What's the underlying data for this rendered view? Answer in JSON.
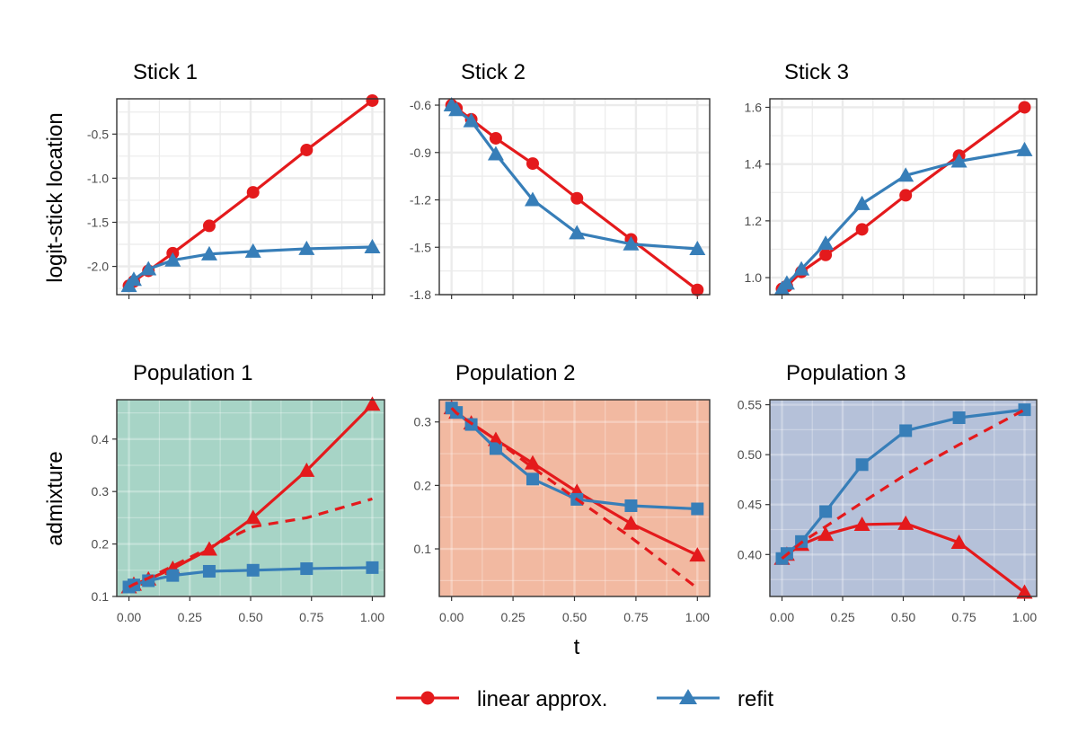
{
  "colors": {
    "linear": "#E41A1C",
    "refit": "#377EB8",
    "population_bg": [
      "#A7D4C6",
      "#F2B9A1",
      "#B5C1D9"
    ]
  },
  "legend": {
    "items": [
      {
        "label": "linear approx.",
        "color": "#E41A1C",
        "marker": "circle"
      },
      {
        "label": "refit",
        "color": "#377EB8",
        "marker": "triangle"
      }
    ]
  },
  "axes": {
    "top_ylabel": "logit-stick location",
    "bottom_ylabel": "admixture",
    "xlabel": "t"
  },
  "chart_data": [
    {
      "type": "line",
      "title": "Stick 1",
      "x": [
        0,
        0.02,
        0.08,
        0.18,
        0.33,
        0.51,
        0.73,
        1.0
      ],
      "ylim": [
        -2.32,
        -0.1
      ],
      "yticks": [
        -0.5,
        -1.0,
        -1.5,
        -2.0
      ],
      "ytick_labels": [
        "-0.5",
        "-1.0",
        "-1.5",
        "-2.0"
      ],
      "show_xticklabels": false,
      "grid": true,
      "background": "white",
      "series": [
        {
          "name": "linear approx.",
          "marker": "circle",
          "dashed": false,
          "values": [
            -2.22,
            -2.17,
            -2.05,
            -1.85,
            -1.54,
            -1.16,
            -0.68,
            -0.12
          ]
        },
        {
          "name": "refit",
          "marker": "triangle",
          "dashed": false,
          "values": [
            -2.22,
            -2.15,
            -2.03,
            -1.93,
            -1.86,
            -1.83,
            -1.8,
            -1.78
          ]
        }
      ]
    },
    {
      "type": "line",
      "title": "Stick 2",
      "x": [
        0,
        0.02,
        0.08,
        0.18,
        0.33,
        0.51,
        0.73,
        1.0
      ],
      "ylim": [
        -1.8,
        -0.56
      ],
      "yticks": [
        -0.6,
        -0.9,
        -1.2,
        -1.5,
        -1.8
      ],
      "ytick_labels": [
        "-0.6",
        "-0.9",
        "-1.2",
        "-1.5",
        "-1.8"
      ],
      "show_xticklabels": false,
      "grid": true,
      "background": "white",
      "series": [
        {
          "name": "linear approx.",
          "marker": "circle",
          "dashed": false,
          "values": [
            -0.6,
            -0.62,
            -0.69,
            -0.81,
            -0.97,
            -1.19,
            -1.45,
            -1.77
          ]
        },
        {
          "name": "refit",
          "marker": "triangle",
          "dashed": false,
          "values": [
            -0.6,
            -0.63,
            -0.7,
            -0.91,
            -1.2,
            -1.41,
            -1.48,
            -1.51
          ]
        }
      ]
    },
    {
      "type": "line",
      "title": "Stick 3",
      "x": [
        0,
        0.02,
        0.08,
        0.18,
        0.33,
        0.51,
        0.73,
        1.0
      ],
      "ylim": [
        0.94,
        1.63
      ],
      "yticks": [
        1.0,
        1.2,
        1.4,
        1.6
      ],
      "ytick_labels": [
        "1.0",
        "1.2",
        "1.4",
        "1.6"
      ],
      "show_xticklabels": false,
      "grid": true,
      "background": "white",
      "series": [
        {
          "name": "linear approx.",
          "marker": "circle",
          "dashed": false,
          "values": [
            0.96,
            0.97,
            1.02,
            1.08,
            1.17,
            1.29,
            1.43,
            1.6
          ]
        },
        {
          "name": "refit",
          "marker": "triangle",
          "dashed": false,
          "values": [
            0.96,
            0.98,
            1.03,
            1.12,
            1.26,
            1.36,
            1.41,
            1.45
          ]
        }
      ]
    },
    {
      "type": "line",
      "title": "Population 1",
      "x": [
        0,
        0.02,
        0.08,
        0.18,
        0.33,
        0.51,
        0.73,
        1.0
      ],
      "ylim": [
        0.1,
        0.475
      ],
      "yticks": [
        0.1,
        0.2,
        0.3,
        0.4
      ],
      "ytick_labels": [
        "0.1",
        "0.2",
        "0.3",
        "0.4"
      ],
      "show_xticklabels": true,
      "xticks": [
        0,
        0.25,
        0.5,
        0.75,
        1.0
      ],
      "xtick_labels": [
        "0.00",
        "0.25",
        "0.50",
        "0.75",
        "1.00"
      ],
      "grid": true,
      "background": "#A7D4C6",
      "series": [
        {
          "name": "linear approx.",
          "marker": "triangle",
          "dashed": false,
          "values": [
            0.118,
            0.123,
            0.133,
            0.153,
            0.19,
            0.25,
            0.34,
            0.466
          ]
        },
        {
          "name": "refit",
          "marker": "square",
          "dashed": false,
          "values": [
            0.118,
            0.122,
            0.13,
            0.14,
            0.148,
            0.15,
            0.153,
            0.155
          ]
        },
        {
          "name": "linear approx.",
          "marker": "none",
          "dashed": true,
          "values": [
            0.118,
            0.123,
            0.135,
            0.158,
            0.193,
            0.233,
            0.25,
            0.286
          ]
        }
      ]
    },
    {
      "type": "line",
      "title": "Population 2",
      "x": [
        0,
        0.02,
        0.08,
        0.18,
        0.33,
        0.51,
        0.73,
        1.0
      ],
      "ylim": [
        0.025,
        0.335
      ],
      "yticks": [
        0.1,
        0.2,
        0.3
      ],
      "ytick_labels": [
        "0.1",
        "0.2",
        "0.3"
      ],
      "show_xticklabels": true,
      "xticks": [
        0,
        0.25,
        0.5,
        0.75,
        1.0
      ],
      "xtick_labels": [
        "0.00",
        "0.25",
        "0.50",
        "0.75",
        "1.00"
      ],
      "grid": true,
      "background": "#F2B9A1",
      "series": [
        {
          "name": "linear approx.",
          "marker": "triangle",
          "dashed": false,
          "values": [
            0.322,
            0.315,
            0.298,
            0.272,
            0.235,
            0.19,
            0.14,
            0.09
          ]
        },
        {
          "name": "refit",
          "marker": "square",
          "dashed": false,
          "values": [
            0.322,
            0.315,
            0.296,
            0.258,
            0.21,
            0.178,
            0.168,
            0.163
          ]
        },
        {
          "name": "linear approx.",
          "marker": "none",
          "dashed": true,
          "values": [
            0.322,
            0.314,
            0.298,
            0.272,
            0.228,
            0.178,
            0.118,
            0.038
          ]
        }
      ]
    },
    {
      "type": "line",
      "title": "Population 3",
      "x": [
        0,
        0.02,
        0.08,
        0.18,
        0.33,
        0.51,
        0.73,
        1.0
      ],
      "ylim": [
        0.358,
        0.555
      ],
      "yticks": [
        0.4,
        0.45,
        0.5,
        0.55
      ],
      "ytick_labels": [
        "0.40",
        "0.45",
        "0.50",
        "0.55"
      ],
      "show_xticklabels": true,
      "xticks": [
        0,
        0.25,
        0.5,
        0.75,
        1.0
      ],
      "xtick_labels": [
        "0.00",
        "0.25",
        "0.50",
        "0.75",
        "1.00"
      ],
      "grid": true,
      "background": "#B5C1D9",
      "series": [
        {
          "name": "linear approx.",
          "marker": "triangle",
          "dashed": false,
          "values": [
            0.396,
            0.4,
            0.41,
            0.42,
            0.43,
            0.431,
            0.412,
            0.362
          ]
        },
        {
          "name": "refit",
          "marker": "square",
          "dashed": false,
          "values": [
            0.396,
            0.401,
            0.413,
            0.443,
            0.49,
            0.524,
            0.537,
            0.545
          ]
        },
        {
          "name": "linear approx.",
          "marker": "none",
          "dashed": true,
          "values": [
            0.396,
            0.4,
            0.412,
            0.428,
            0.452,
            0.48,
            0.51,
            0.545
          ]
        }
      ]
    }
  ]
}
